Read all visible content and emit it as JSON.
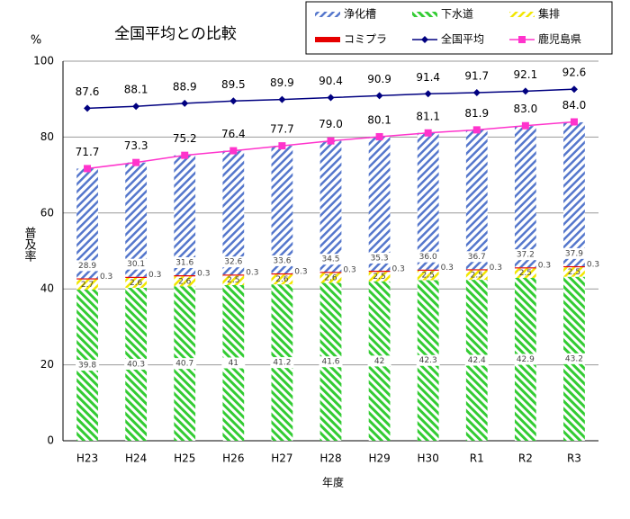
{
  "chart_data": {
    "type": "bar",
    "title": "全国平均との比較",
    "y_unit": "%",
    "ylabel": "普及率",
    "xlabel": "年度",
    "categories": [
      "H23",
      "H24",
      "H25",
      "H26",
      "H27",
      "H28",
      "H29",
      "H30",
      "R1",
      "R2",
      "R3"
    ],
    "ylim": [
      0,
      100
    ],
    "yticks": [
      0,
      20,
      40,
      60,
      80,
      100
    ],
    "grid": true,
    "legend": "top-right",
    "stacked": true,
    "series": [
      {
        "name": "下水道",
        "type": "bar",
        "color": "#33cc33",
        "values": [
          39.8,
          40.3,
          40.7,
          41.0,
          41.2,
          41.6,
          42.0,
          42.3,
          42.4,
          42.9,
          43.2
        ]
      },
      {
        "name": "集排",
        "type": "bar",
        "color": "#f2e600",
        "values": [
          2.7,
          2.6,
          2.6,
          2.5,
          2.6,
          2.6,
          2.5,
          2.5,
          2.5,
          2.5,
          2.5
        ]
      },
      {
        "name": "コミプラ",
        "type": "bar",
        "color": "#e60000",
        "values": [
          0.3,
          0.3,
          0.3,
          0.3,
          0.3,
          0.3,
          0.3,
          0.3,
          0.3,
          0.3,
          0.3
        ]
      },
      {
        "name": "浄化槽",
        "type": "bar",
        "color": "#5577cc",
        "values": [
          28.9,
          30.1,
          31.6,
          32.6,
          33.6,
          34.5,
          35.3,
          36.0,
          36.7,
          37.2,
          37.9
        ],
        "value_labels": [
          "28.9",
          "30.1",
          "31.6",
          "32.6",
          "33.6",
          "34.5",
          "35.3",
          "36.0",
          "36.7",
          "37.2",
          "37.9"
        ]
      },
      {
        "name": "全国平均",
        "type": "line",
        "marker": "diamond",
        "color": "#000080",
        "values": [
          87.6,
          88.1,
          88.9,
          89.5,
          89.9,
          90.4,
          90.9,
          91.4,
          91.7,
          92.1,
          92.6
        ]
      },
      {
        "name": "鹿児島県",
        "type": "line",
        "marker": "square",
        "color": "#ff33cc",
        "values": [
          71.7,
          73.3,
          75.2,
          76.4,
          77.7,
          79.0,
          80.1,
          81.1,
          81.9,
          83.0,
          84.0
        ],
        "value_labels": [
          "71.7",
          "73.3",
          "75.2",
          "76.4",
          "77.7",
          "79.0",
          "80.1",
          "81.1",
          "81.9",
          "83.0",
          "84.0"
        ]
      }
    ]
  }
}
